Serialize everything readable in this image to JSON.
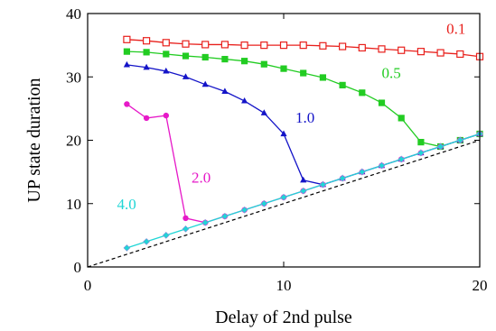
{
  "chart_data": {
    "type": "line",
    "title": "",
    "xlabel": "Delay of 2nd pulse",
    "ylabel": "UP state duration",
    "xlim": [
      0,
      20
    ],
    "ylim": [
      0,
      40
    ],
    "xticks": [
      0,
      10,
      20
    ],
    "yticks": [
      0,
      10,
      20,
      30,
      40
    ],
    "grid": false,
    "legend": "inline labels next to each series",
    "series": [
      {
        "name": "0.1",
        "color": "#e8201c",
        "marker": "open-square",
        "x": [
          2,
          3,
          4,
          5,
          6,
          7,
          8,
          9,
          10,
          11,
          12,
          13,
          14,
          15,
          16,
          17,
          18,
          19,
          20
        ],
        "y": [
          35.9,
          35.7,
          35.4,
          35.2,
          35.1,
          35.1,
          35.0,
          35.0,
          35.0,
          35.0,
          34.9,
          34.8,
          34.6,
          34.4,
          34.2,
          34.0,
          33.8,
          33.6,
          33.2
        ]
      },
      {
        "name": "0.5",
        "color": "#22cc22",
        "marker": "filled-square",
        "x": [
          2,
          3,
          4,
          5,
          6,
          7,
          8,
          9,
          10,
          11,
          12,
          13,
          14,
          15,
          16,
          17,
          18,
          19,
          20
        ],
        "y": [
          34.0,
          33.9,
          33.6,
          33.3,
          33.1,
          32.8,
          32.5,
          32.0,
          31.3,
          30.6,
          29.9,
          28.7,
          27.5,
          25.9,
          23.5,
          19.7,
          19.0,
          20.0,
          21.0
        ]
      },
      {
        "name": "1.0",
        "color": "#1414c8",
        "marker": "filled-triangle",
        "x": [
          2,
          3,
          4,
          5,
          6,
          7,
          8,
          9,
          10,
          11,
          12,
          13,
          14,
          15,
          16,
          17,
          18,
          19,
          20
        ],
        "y": [
          31.9,
          31.5,
          30.9,
          30.0,
          28.8,
          27.7,
          26.2,
          24.3,
          21.0,
          13.7,
          13.0,
          14.0,
          15.0,
          16.0,
          17.0,
          18.0,
          19.0,
          20.0,
          21.0
        ]
      },
      {
        "name": "2.0",
        "color": "#e619c8",
        "marker": "filled-circle",
        "x": [
          2,
          3,
          4,
          5,
          6,
          7,
          8,
          9,
          10,
          11,
          12,
          13,
          14,
          15,
          16,
          17,
          18,
          19,
          20
        ],
        "y": [
          25.7,
          23.5,
          23.9,
          7.7,
          7.0,
          8.0,
          9.0,
          10.0,
          11.0,
          12.0,
          13.0,
          14.0,
          15.0,
          16.0,
          17.0,
          18.0,
          19.0,
          20.0,
          21.0
        ]
      },
      {
        "name": "4.0",
        "color": "#1fd6d6",
        "marker": "filled-diamond",
        "x": [
          2,
          3,
          4,
          5,
          6,
          7,
          8,
          9,
          10,
          11,
          12,
          13,
          14,
          15,
          16,
          17,
          18,
          19,
          20
        ],
        "y": [
          3.0,
          4.0,
          5.0,
          6.0,
          7.0,
          8.0,
          9.0,
          10.0,
          11.0,
          12.0,
          13.0,
          14.0,
          15.0,
          16.0,
          17.0,
          18.0,
          19.0,
          20.0,
          21.0
        ]
      }
    ],
    "reference_line": {
      "style": "dashed",
      "color": "#000000",
      "x": [
        0,
        20
      ],
      "y": [
        0,
        20
      ]
    }
  }
}
